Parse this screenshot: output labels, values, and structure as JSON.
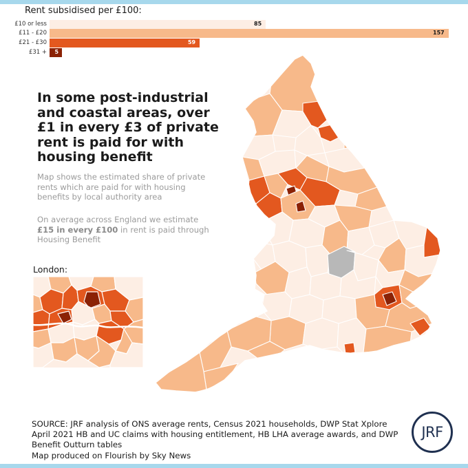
{
  "chart_data": {
    "type": "bar",
    "title": "Rent subsidised per £100:",
    "categories": [
      "£10 or less",
      "£11 - £20",
      "£21 - £30",
      "£31 +"
    ],
    "values": [
      85,
      157,
      59,
      5
    ],
    "colors": [
      "#fdeee4",
      "#f7b98a",
      "#e3581f",
      "#8b2205"
    ],
    "value_colors": [
      "#1a1a1a",
      "#1a1a1a",
      "#ffffff",
      "#ffffff"
    ],
    "xlim": [
      0,
      157
    ]
  },
  "headline": "In some post-industrial and coastal areas, over £1 in every £3 of private rent is paid for with housing benefit",
  "description": "Map shows the estimated share of private rents which are paid for with housing benefits by local authority area",
  "average": {
    "before": "On average across England we estimate ",
    "highlight": "£15 in every £100",
    "after": " in rent is paid through Housing Benefit"
  },
  "london_label": "London:",
  "source": "SOURCE: JRF analysis of ONS average rents, Census 2021 households, DWP Stat Xplore April 2021 HB and UC claims with housing entitlement, HB LHA average awards, and DWP Benefit Outturn tables",
  "credit": "Map produced on Flourish by Sky News",
  "logo_text": "JRF",
  "palette": {
    "lightest": "#fdeee4",
    "light": "#f7b98a",
    "medium": "#e3581f",
    "dark": "#8b2205",
    "no_data": "#b8b8b8",
    "frame": "#a7d8ec"
  }
}
